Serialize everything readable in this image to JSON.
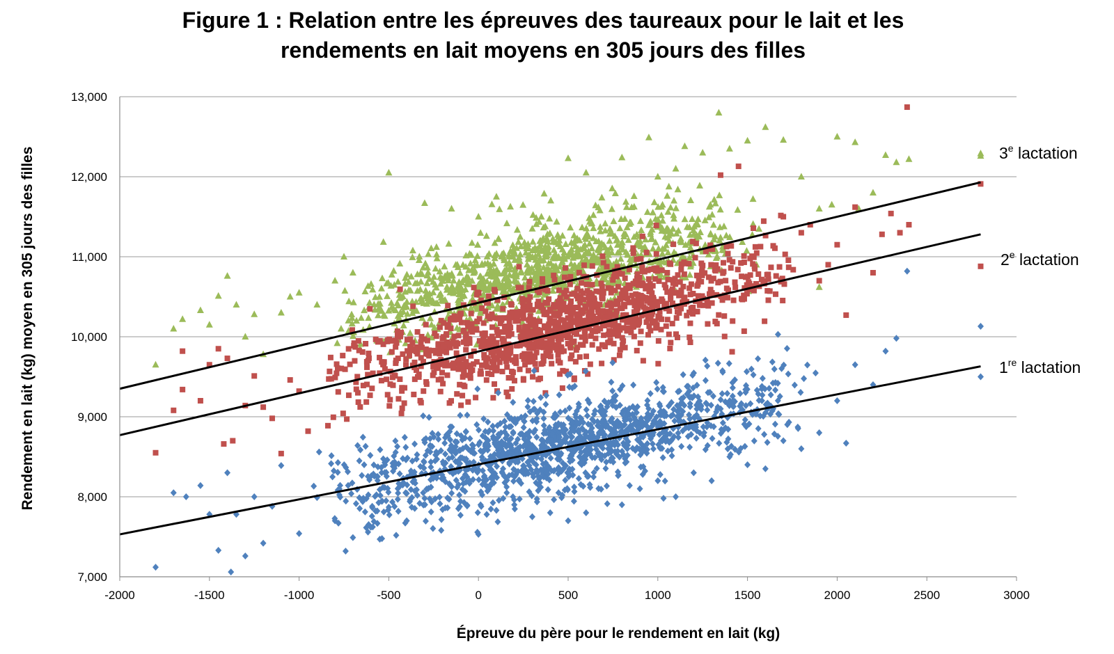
{
  "chart_data": {
    "type": "scatter",
    "title": "Figure 1 : Relation entre les épreuves des taureaux pour le lait et les rendements en lait moyens en 305 jours des filles",
    "title_lines": [
      "Figure 1 : Relation entre les épreuves des taureaux pour le lait et les",
      "rendements en lait moyens en 305 jours des filles"
    ],
    "xlabel": "Épreuve du père pour le rendement en lait (kg)",
    "ylabel": "Rendement en lait (kg) moyen en 305 jours des filles",
    "xlim": [
      -2000,
      3000
    ],
    "ylim": [
      7000,
      13000
    ],
    "x_ticks": [
      "-2000",
      "-1500",
      "-1000",
      "-500",
      "0",
      "500",
      "1000",
      "1500",
      "2000",
      "2500",
      "3000"
    ],
    "y_ticks": [
      "7,000",
      "8,000",
      "9,000",
      "10,000",
      "11,000",
      "12,000",
      "13,000"
    ],
    "grid": "horizontal",
    "series": [
      {
        "label_num": "1",
        "label_sup": "re",
        "label_text": " lactation",
        "marker": "diamond",
        "color": "#4f81bd",
        "trendline": {
          "x": [
            -2000,
            2800
          ],
          "y": [
            7530,
            9630
          ]
        },
        "points": [
          [
            -1800,
            7120
          ],
          [
            -1700,
            8050
          ],
          [
            -1630,
            8000
          ],
          [
            -1550,
            8140
          ],
          [
            -1500,
            7780
          ],
          [
            -1450,
            7330
          ],
          [
            -1400,
            8300
          ],
          [
            -1380,
            7060
          ],
          [
            -1350,
            7780
          ],
          [
            -1300,
            7260
          ],
          [
            -1250,
            8000
          ],
          [
            -1200,
            7420
          ],
          [
            -1150,
            7880
          ],
          [
            -1100,
            8390
          ],
          [
            -1000,
            7540
          ],
          [
            -900,
            7990
          ],
          [
            -800,
            7700
          ],
          [
            -700,
            7490
          ],
          [
            -600,
            7620
          ],
          [
            -550,
            7470
          ],
          [
            -500,
            7870
          ],
          [
            -400,
            7700
          ],
          [
            -300,
            7980
          ],
          [
            -200,
            7840
          ],
          [
            -100,
            7770
          ],
          [
            0,
            7530
          ],
          [
            100,
            7830
          ],
          [
            200,
            7900
          ],
          [
            300,
            7750
          ],
          [
            400,
            7800
          ],
          [
            500,
            7700
          ],
          [
            600,
            7800
          ],
          [
            800,
            7900
          ],
          [
            900,
            8100
          ],
          [
            1000,
            8200
          ],
          [
            1100,
            8000
          ],
          [
            1200,
            8300
          ],
          [
            1300,
            8200
          ],
          [
            1400,
            8500
          ],
          [
            1500,
            8400
          ],
          [
            1600,
            8350
          ],
          [
            1700,
            8700
          ],
          [
            1800,
            8600
          ],
          [
            1900,
            8800
          ],
          [
            2000,
            9200
          ],
          [
            2050,
            8670
          ],
          [
            2100,
            9650
          ],
          [
            2200,
            9400
          ],
          [
            2270,
            9820
          ],
          [
            2330,
            9980
          ],
          [
            2390,
            10820
          ],
          [
            2800,
            10130
          ],
          [
            2800,
            9500
          ]
        ],
        "cloud": {
          "x_range": [
            -1000,
            1900
          ],
          "y_center_at_0": 8450,
          "slope": 0.45,
          "spread": 380,
          "count": 1400,
          "seed": 11
        }
      },
      {
        "label_num": "2",
        "label_sup": "e",
        "label_text": " lactation",
        "marker": "square",
        "color": "#c0504d",
        "trendline": {
          "x": [
            -2000,
            2800
          ],
          "y": [
            8770,
            11280
          ]
        },
        "points": [
          [
            -1800,
            8550
          ],
          [
            -1700,
            9080
          ],
          [
            -1650,
            9340
          ],
          [
            -1650,
            9820
          ],
          [
            -1550,
            9200
          ],
          [
            -1500,
            9650
          ],
          [
            -1450,
            9850
          ],
          [
            -1420,
            8660
          ],
          [
            -1400,
            9730
          ],
          [
            -1370,
            8700
          ],
          [
            -1300,
            9140
          ],
          [
            -1250,
            9510
          ],
          [
            -1200,
            9120
          ],
          [
            -1150,
            8980
          ],
          [
            -1100,
            8540
          ],
          [
            -1050,
            9460
          ],
          [
            -1000,
            9320
          ],
          [
            -950,
            8820
          ],
          [
            1700,
            11500
          ],
          [
            1800,
            11300
          ],
          [
            1850,
            11400
          ],
          [
            1900,
            10700
          ],
          [
            1950,
            10900
          ],
          [
            2000,
            11150
          ],
          [
            2050,
            10270
          ],
          [
            2100,
            11620
          ],
          [
            2200,
            10800
          ],
          [
            2250,
            11280
          ],
          [
            2300,
            11540
          ],
          [
            2350,
            11300
          ],
          [
            2390,
            12870
          ],
          [
            2400,
            11400
          ],
          [
            2800,
            11910
          ],
          [
            2800,
            10880
          ],
          [
            1350,
            12020
          ],
          [
            1450,
            12130
          ]
        ],
        "cloud": {
          "x_range": [
            -900,
            1800
          ],
          "y_center_at_0": 9900,
          "slope": 0.55,
          "spread": 380,
          "count": 1300,
          "seed": 23
        }
      },
      {
        "label_num": "3",
        "label_sup": "e",
        "label_text": " lactation",
        "marker": "triangle",
        "color": "#9bbb59",
        "trendline": {
          "x": [
            -2000,
            2800
          ],
          "y": [
            9350,
            11930
          ]
        },
        "points": [
          [
            -1800,
            9650
          ],
          [
            -1700,
            10100
          ],
          [
            -1650,
            10220
          ],
          [
            -1550,
            10330
          ],
          [
            -1500,
            10150
          ],
          [
            -1450,
            10510
          ],
          [
            -1400,
            10760
          ],
          [
            -1350,
            10400
          ],
          [
            -1300,
            10000
          ],
          [
            -1250,
            10280
          ],
          [
            -1200,
            9780
          ],
          [
            -1100,
            10300
          ],
          [
            -1050,
            10500
          ],
          [
            -1000,
            10550
          ],
          [
            -900,
            10400
          ],
          [
            -800,
            10700
          ],
          [
            -750,
            11000
          ],
          [
            -700,
            10800
          ],
          [
            -500,
            12050
          ],
          [
            -300,
            11670
          ],
          [
            -150,
            11600
          ],
          [
            0,
            11500
          ],
          [
            100,
            11750
          ],
          [
            300,
            11350
          ],
          [
            500,
            12230
          ],
          [
            600,
            12050
          ],
          [
            800,
            12240
          ],
          [
            950,
            12490
          ],
          [
            1000,
            12000
          ],
          [
            1100,
            12100
          ],
          [
            1150,
            12380
          ],
          [
            1250,
            12300
          ],
          [
            1340,
            12800
          ],
          [
            1400,
            12350
          ],
          [
            1500,
            12450
          ],
          [
            1600,
            12620
          ],
          [
            1700,
            12460
          ],
          [
            1800,
            12000
          ],
          [
            1900,
            11600
          ],
          [
            2000,
            12500
          ],
          [
            2100,
            12430
          ],
          [
            2200,
            11800
          ],
          [
            2270,
            12270
          ],
          [
            2330,
            12180
          ],
          [
            2400,
            12220
          ],
          [
            2800,
            12290
          ],
          [
            2800,
            12260
          ],
          [
            1970,
            11650
          ],
          [
            2120,
            11600
          ],
          [
            1900,
            10620
          ],
          [
            1550,
            10900
          ]
        ],
        "cloud": {
          "x_range": [
            -850,
            1600
          ],
          "y_center_at_0": 10650,
          "slope": 0.5,
          "spread": 380,
          "count": 1200,
          "seed": 37
        }
      }
    ]
  }
}
